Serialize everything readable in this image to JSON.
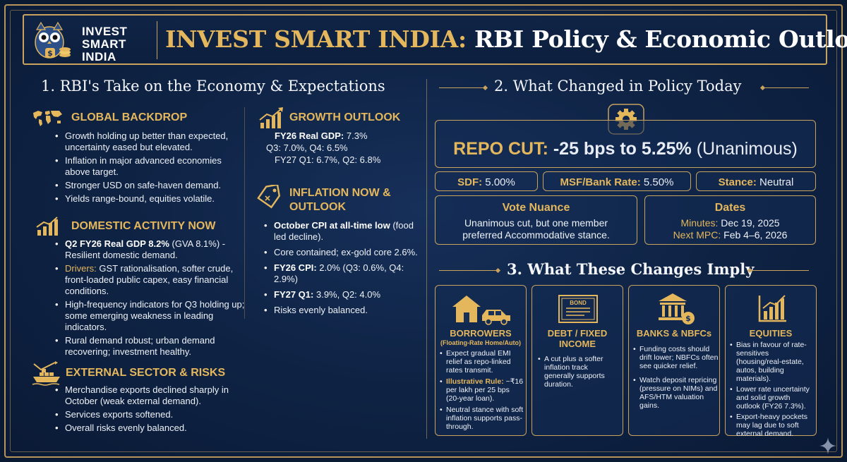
{
  "brand": {
    "line1": "INVEST",
    "line2": "SMART",
    "line3": "INDIA"
  },
  "header": {
    "title_gold": "INVEST SMART INDIA:",
    "title_rest": " RBI Policy & Economic Outlook"
  },
  "section1": {
    "title": "1. RBI's Take on the Economy & Expectations",
    "global": {
      "title": "GLOBAL BACKDROP",
      "items": [
        "Growth holding up better than expected, uncertainty eased but elevated.",
        "Inflation in major advanced economies above target.",
        "Stronger USD on safe-haven demand.",
        "Yields range-bound, equities volatile."
      ]
    },
    "domestic": {
      "title": "DOMESTIC ACTIVITY NOW",
      "item1_bold": "Q2 FY26 Real GDP 8.2%",
      "item1_rest": " (GVA 8.1%) - Resilient domestic demand.",
      "item2_label": "Drivers:",
      "item2_rest": " GST rationalisation, softer crude, front-loaded public capex, easy financial conditions.",
      "item3": "High-frequency indicators for Q3 holding up; some emerging weakness in leading indicators.",
      "item4": "Rural demand robust; urban demand recovering; investment healthy."
    },
    "external": {
      "title": "EXTERNAL SECTOR & RISKS",
      "items": [
        "Merchandise exports declined sharply in October (weak external demand).",
        "Services exports softened.",
        "Overall risks evenly balanced."
      ]
    },
    "growth": {
      "title": "GROWTH OUTLOOK",
      "l1_bold": "FY26 Real GDP:",
      "l1_val": " 7.3%",
      "l2": "Q3: 7.0%, Q4: 6.5%",
      "l3": "FY27 Q1: 6.7%, Q2: 6.8%"
    },
    "inflation": {
      "title_l1": "INFLATION NOW &",
      "title_l2": "OUTLOOK",
      "i1_bold": "October CPI at all-time low",
      "i1_rest": " (food led decline).",
      "i2": "Core contained; ex-gold core 2.6%.",
      "i3_bold": "FY26 CPI:",
      "i3_rest": " 2.0% (Q3: 0.6%, Q4: 2.9%)",
      "i4_bold": "FY27 Q1:",
      "i4_rest": " 3.9%, Q2: 4.0%",
      "i5": "Risks evenly balanced."
    }
  },
  "section2": {
    "title": "2. What Changed in Policy Today",
    "repo_label": "REPO CUT:",
    "repo_value": " -25 bps to 5.25%",
    "repo_note": " (Unanimous)",
    "sdf_label": "SDF:",
    "sdf_value": " 5.00%",
    "msf_label": "MSF/Bank Rate:",
    "msf_value": " 5.50%",
    "stance_label": "Stance:",
    "stance_value": " Neutral",
    "vote_title": "Vote Nuance",
    "vote_l1": "Unanimous cut, but one member",
    "vote_l2": "preferred Accommodative stance.",
    "dates_title": "Dates",
    "minutes_label": "Minutes:",
    "minutes_value": " Dec 19, 2025",
    "mpc_label": "Next MPC:",
    "mpc_value": " Feb 4–6, 2026"
  },
  "section3": {
    "title": "3. What These Changes Imply",
    "borrowers": {
      "title": "BORROWERS",
      "subtitle": "(Floating-Rate Home/Auto)",
      "b1": "Expect gradual EMI relief as repo-linked rates transmit.",
      "b2_label": "Illustrative Rule:",
      "b2_rest": " ~₹16 per lakh per 25 bps (20-year loan).",
      "b3": "Neutral stance with soft inflation supports pass-through."
    },
    "debt": {
      "title_l1": "DEBT / FIXED",
      "title_l2": "INCOME",
      "bond_label": "BOND",
      "b1": "A cut plus a softer inflation track generally supports duration."
    },
    "banks": {
      "title": "BANKS & NBFCs",
      "b1": "Funding costs should drift lower; NBFCs often see quicker relief.",
      "b2": "Watch deposit repricing (pressure on NIMs) and AFS/HTM valuation gains."
    },
    "equities": {
      "title": "EQUITIES",
      "b1": "Bias in favour of rate-sensitives (housing/real-estate, autos, building materials).",
      "b2": "Lower rate uncertainty and solid growth outlook (FY26 7.3%).",
      "b3": "Export-heavy pockets may lag due to soft external demand."
    }
  },
  "colors": {
    "gold": "#e5b75c",
    "navy": "#0f2446",
    "border": "#c9a25e"
  }
}
